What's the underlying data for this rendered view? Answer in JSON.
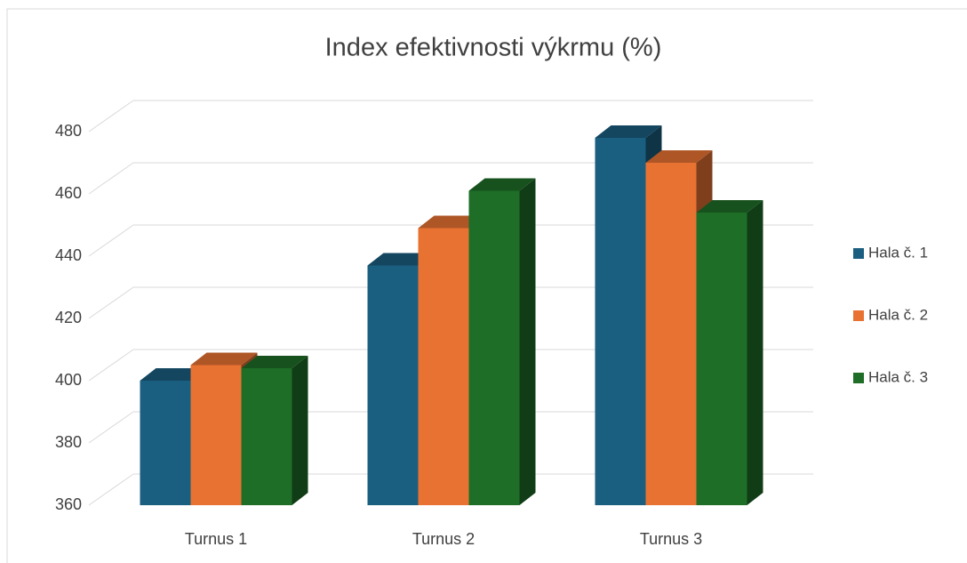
{
  "chart_data": {
    "type": "bar3d",
    "title": "Index efektivnosti výkrmu (%)",
    "categories": [
      "Turnus 1",
      "Turnus 2",
      "Turnus 3"
    ],
    "series": [
      {
        "name": "Hala č. 1",
        "color": "#1a5e80",
        "values": [
          400,
          437,
          478
        ]
      },
      {
        "name": "Hala č. 2",
        "color": "#e87232",
        "values": [
          405,
          449,
          470
        ]
      },
      {
        "name": "Hala č. 3",
        "color": "#1e6e28",
        "values": [
          404,
          461,
          454
        ]
      }
    ],
    "ylim": [
      360,
      480
    ],
    "yticks": [
      360,
      380,
      400,
      420,
      440,
      460,
      480
    ],
    "grid": true,
    "legend": "right"
  }
}
